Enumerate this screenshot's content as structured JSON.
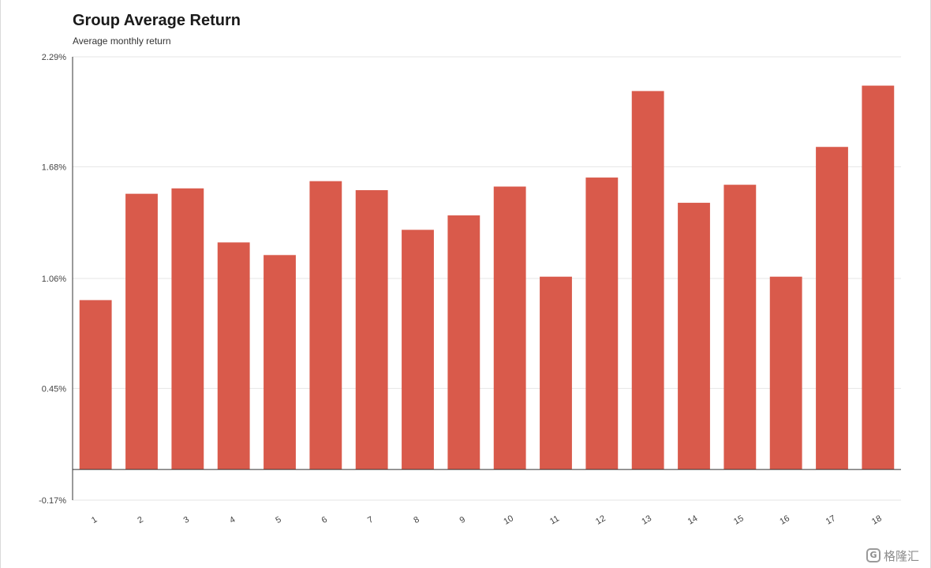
{
  "header": {
    "title": "Group Average Return",
    "subtitle": "Average monthly return"
  },
  "watermark": {
    "logo_glyph": "G",
    "text": "格隆汇"
  },
  "chart_data": {
    "type": "bar",
    "title": "Group Average Return",
    "subtitle": "Average monthly return",
    "xlabel": "",
    "ylabel": "",
    "ylim": [
      -0.17,
      2.29
    ],
    "y_ticks": [
      -0.17,
      0.45,
      1.06,
      1.68,
      2.29
    ],
    "y_tick_labels": [
      "-0.17%",
      "0.45%",
      "1.06%",
      "1.68%",
      "2.29%"
    ],
    "categories": [
      "1",
      "2",
      "3",
      "4",
      "5",
      "6",
      "7",
      "8",
      "9",
      "10",
      "11",
      "12",
      "13",
      "14",
      "15",
      "16",
      "17",
      "18"
    ],
    "values": [
      0.94,
      1.53,
      1.56,
      1.26,
      1.19,
      1.6,
      1.55,
      1.33,
      1.41,
      1.57,
      1.07,
      1.62,
      2.1,
      1.48,
      1.58,
      1.07,
      1.79,
      2.13
    ],
    "grid": true,
    "legend": "none",
    "colors": {
      "bar": "#d95a4b",
      "grid": "#e6e6e6",
      "axis": "#333333",
      "text": "#444444"
    }
  }
}
